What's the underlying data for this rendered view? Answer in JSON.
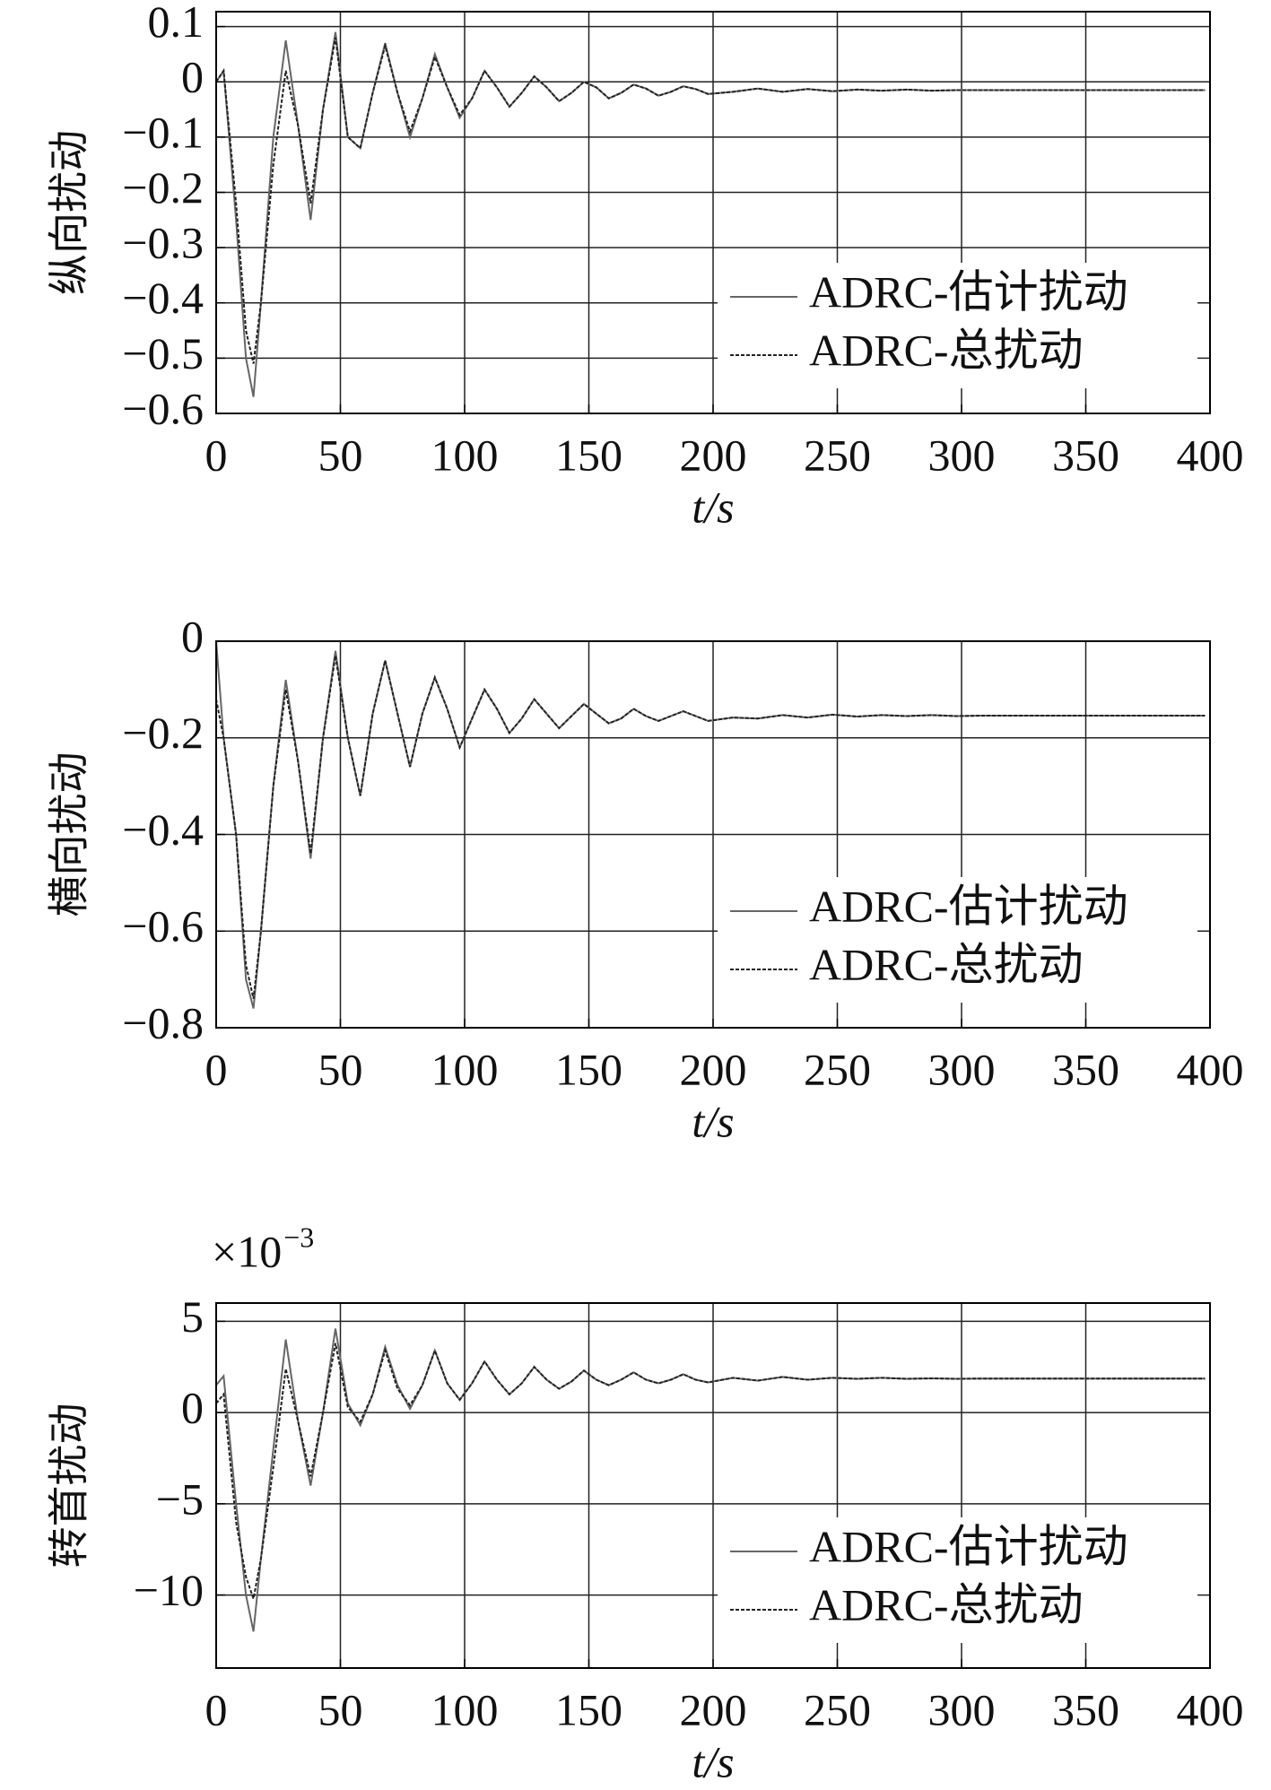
{
  "chart_data": [
    {
      "type": "line",
      "ylabel": "纵向扰动",
      "xlabel": "t/s",
      "x": [
        0,
        3,
        8,
        12,
        15,
        18,
        23,
        28,
        33,
        38,
        43,
        48,
        53,
        58,
        63,
        68,
        73,
        78,
        83,
        88,
        93,
        98,
        103,
        108,
        113,
        118,
        123,
        128,
        133,
        138,
        143,
        148,
        153,
        158,
        163,
        168,
        173,
        178,
        183,
        188,
        193,
        198,
        208,
        218,
        228,
        238,
        248,
        258,
        268,
        278,
        288,
        298,
        308,
        318,
        328,
        338,
        348,
        358,
        368,
        378,
        388,
        398
      ],
      "series": [
        {
          "name": "ADRC-估计扰动",
          "color": "#666666",
          "style": "solid",
          "values": [
            0.0,
            0.02,
            -0.25,
            -0.5,
            -0.57,
            -0.4,
            -0.1,
            0.075,
            -0.08,
            -0.25,
            -0.05,
            0.09,
            -0.1,
            -0.12,
            -0.02,
            0.07,
            -0.02,
            -0.1,
            -0.03,
            0.05,
            -0.01,
            -0.065,
            -0.03,
            0.02,
            -0.01,
            -0.045,
            -0.02,
            0.01,
            -0.01,
            -0.035,
            -0.02,
            0.0,
            -0.01,
            -0.03,
            -0.02,
            -0.005,
            -0.012,
            -0.025,
            -0.018,
            -0.008,
            -0.013,
            -0.022,
            -0.018,
            -0.012,
            -0.018,
            -0.013,
            -0.017,
            -0.014,
            -0.016,
            -0.014,
            -0.016,
            -0.015,
            -0.015,
            -0.015,
            -0.015,
            -0.015,
            -0.015,
            -0.015,
            -0.015,
            -0.015,
            -0.015,
            -0.015
          ]
        },
        {
          "name": "ADRC-总扰动",
          "color": "#222222",
          "style": "dotted",
          "values": [
            0.0,
            0.02,
            -0.22,
            -0.45,
            -0.51,
            -0.4,
            -0.15,
            0.02,
            -0.08,
            -0.22,
            -0.05,
            0.08,
            -0.1,
            -0.12,
            -0.02,
            0.065,
            -0.02,
            -0.09,
            -0.03,
            0.045,
            -0.01,
            -0.06,
            -0.03,
            0.02,
            -0.01,
            -0.045,
            -0.02,
            0.01,
            -0.01,
            -0.035,
            -0.02,
            0.0,
            -0.01,
            -0.03,
            -0.02,
            -0.005,
            -0.012,
            -0.025,
            -0.018,
            -0.008,
            -0.013,
            -0.022,
            -0.018,
            -0.012,
            -0.018,
            -0.013,
            -0.017,
            -0.014,
            -0.016,
            -0.014,
            -0.016,
            -0.015,
            -0.015,
            -0.015,
            -0.015,
            -0.015,
            -0.015,
            -0.015,
            -0.015,
            -0.015,
            -0.015,
            -0.015
          ]
        }
      ],
      "xlim": [
        0,
        400
      ],
      "xticks": [
        0,
        50,
        100,
        150,
        200,
        250,
        300,
        350,
        400
      ],
      "ylim": [
        -0.6,
        0.127
      ],
      "yticks": [
        0.1,
        0,
        {
          "value": -0.1,
          "label": "−0.1"
        },
        {
          "value": -0.2,
          "label": "−0.2"
        },
        {
          "value": -0.3,
          "label": "−0.3"
        },
        {
          "value": -0.4,
          "label": "−0.4"
        },
        {
          "value": -0.5,
          "label": "−0.5"
        },
        {
          "value": -0.6,
          "label": "−0.6"
        }
      ],
      "grid": true,
      "legend": "lower right"
    },
    {
      "type": "line",
      "ylabel": "横向扰动",
      "xlabel": "t/s",
      "x": [
        0,
        3,
        8,
        12,
        15,
        18,
        23,
        28,
        33,
        38,
        43,
        48,
        53,
        58,
        63,
        68,
        73,
        78,
        83,
        88,
        93,
        98,
        103,
        108,
        113,
        118,
        123,
        128,
        133,
        138,
        143,
        148,
        153,
        158,
        163,
        168,
        173,
        178,
        183,
        188,
        193,
        198,
        208,
        218,
        228,
        238,
        248,
        258,
        268,
        278,
        288,
        298,
        308,
        318,
        328,
        338,
        348,
        358,
        368,
        378,
        388,
        398
      ],
      "series": [
        {
          "name": "ADRC-估计扰动",
          "color": "#666666",
          "style": "solid",
          "values": [
            0.0,
            -0.2,
            -0.4,
            -0.7,
            -0.76,
            -0.6,
            -0.3,
            -0.08,
            -0.25,
            -0.45,
            -0.2,
            -0.02,
            -0.2,
            -0.32,
            -0.15,
            -0.04,
            -0.15,
            -0.26,
            -0.15,
            -0.075,
            -0.14,
            -0.22,
            -0.16,
            -0.1,
            -0.14,
            -0.19,
            -0.16,
            -0.12,
            -0.15,
            -0.18,
            -0.155,
            -0.13,
            -0.15,
            -0.17,
            -0.16,
            -0.14,
            -0.155,
            -0.165,
            -0.155,
            -0.145,
            -0.155,
            -0.165,
            -0.158,
            -0.16,
            -0.153,
            -0.158,
            -0.152,
            -0.156,
            -0.153,
            -0.155,
            -0.153,
            -0.155,
            -0.154,
            -0.154,
            -0.154,
            -0.154,
            -0.154,
            -0.154,
            -0.154,
            -0.154,
            -0.154,
            -0.154
          ]
        },
        {
          "name": "ADRC-总扰动",
          "color": "#222222",
          "style": "dotted",
          "values": [
            -0.12,
            -0.2,
            -0.4,
            -0.67,
            -0.74,
            -0.6,
            -0.3,
            -0.1,
            -0.25,
            -0.44,
            -0.2,
            -0.03,
            -0.2,
            -0.32,
            -0.15,
            -0.04,
            -0.15,
            -0.26,
            -0.15,
            -0.075,
            -0.14,
            -0.22,
            -0.16,
            -0.1,
            -0.14,
            -0.19,
            -0.16,
            -0.12,
            -0.15,
            -0.18,
            -0.155,
            -0.13,
            -0.15,
            -0.17,
            -0.16,
            -0.14,
            -0.155,
            -0.165,
            -0.155,
            -0.145,
            -0.155,
            -0.165,
            -0.158,
            -0.16,
            -0.153,
            -0.158,
            -0.152,
            -0.156,
            -0.153,
            -0.155,
            -0.153,
            -0.155,
            -0.154,
            -0.154,
            -0.154,
            -0.154,
            -0.154,
            -0.154,
            -0.154,
            -0.154,
            -0.154,
            -0.154
          ]
        }
      ],
      "xlim": [
        0,
        400
      ],
      "xticks": [
        0,
        50,
        100,
        150,
        200,
        250,
        300,
        350,
        400
      ],
      "ylim": [
        -0.8,
        0
      ],
      "yticks": [
        0,
        {
          "value": -0.2,
          "label": "−0.2"
        },
        {
          "value": -0.4,
          "label": "−0.4"
        },
        {
          "value": -0.6,
          "label": "−0.6"
        },
        {
          "value": -0.8,
          "label": "−0.8"
        }
      ],
      "grid": true,
      "legend": "lower right"
    },
    {
      "type": "line",
      "ylabel": "转首扰动",
      "xlabel": "t/s",
      "y_scale_label": {
        "base": "×10",
        "exponent": "−3"
      },
      "x": [
        0,
        3,
        8,
        12,
        15,
        18,
        23,
        28,
        33,
        38,
        43,
        48,
        53,
        58,
        63,
        68,
        73,
        78,
        83,
        88,
        93,
        98,
        103,
        108,
        113,
        118,
        123,
        128,
        133,
        138,
        143,
        148,
        153,
        158,
        163,
        168,
        173,
        178,
        183,
        188,
        193,
        198,
        208,
        218,
        228,
        238,
        248,
        258,
        268,
        278,
        288,
        298,
        308,
        318,
        328,
        338,
        348,
        358,
        368,
        378,
        388,
        398
      ],
      "series": [
        {
          "name": "ADRC-估计扰动",
          "color": "#666666",
          "style": "solid",
          "values": [
            1.5,
            2.0,
            -5,
            -10,
            -12,
            -8,
            -2,
            4,
            -0.5,
            -4,
            0,
            4.6,
            0.5,
            -0.7,
            1,
            3.6,
            1.5,
            0.2,
            1.5,
            3.4,
            1.6,
            0.7,
            1.6,
            2.8,
            1.8,
            1.0,
            1.6,
            2.5,
            1.8,
            1.3,
            1.7,
            2.3,
            1.8,
            1.5,
            1.8,
            2.2,
            1.8,
            1.6,
            1.8,
            2.1,
            1.8,
            1.65,
            1.9,
            1.75,
            1.95,
            1.8,
            1.9,
            1.85,
            1.9,
            1.85,
            1.87,
            1.85,
            1.86,
            1.86,
            1.86,
            1.86,
            1.86,
            1.86,
            1.86,
            1.86,
            1.86,
            1.86
          ]
        },
        {
          "name": "ADRC-总扰动",
          "color": "#222222",
          "style": "dotted",
          "values": [
            0.5,
            1.0,
            -6,
            -9,
            -10.2,
            -8,
            -3,
            2.4,
            -0.5,
            -3.5,
            0,
            3.8,
            0.3,
            -0.5,
            1,
            3.4,
            1.3,
            0.4,
            1.5,
            3.4,
            1.6,
            0.7,
            1.6,
            2.8,
            1.8,
            1.0,
            1.6,
            2.5,
            1.8,
            1.3,
            1.7,
            2.3,
            1.8,
            1.5,
            1.8,
            2.2,
            1.8,
            1.6,
            1.8,
            2.1,
            1.8,
            1.65,
            1.9,
            1.75,
            1.95,
            1.8,
            1.9,
            1.85,
            1.9,
            1.85,
            1.87,
            1.85,
            1.86,
            1.86,
            1.86,
            1.86,
            1.86,
            1.86,
            1.86,
            1.86,
            1.86,
            1.86
          ]
        }
      ],
      "xlim": [
        0,
        400
      ],
      "xticks": [
        0,
        50,
        100,
        150,
        200,
        250,
        300,
        350,
        400
      ],
      "ylim": [
        -14,
        6
      ],
      "yticks": [
        5,
        0,
        {
          "value": -5,
          "label": "−5"
        },
        {
          "value": -10,
          "label": "−10"
        }
      ],
      "grid": true,
      "legend": "lower right"
    }
  ]
}
